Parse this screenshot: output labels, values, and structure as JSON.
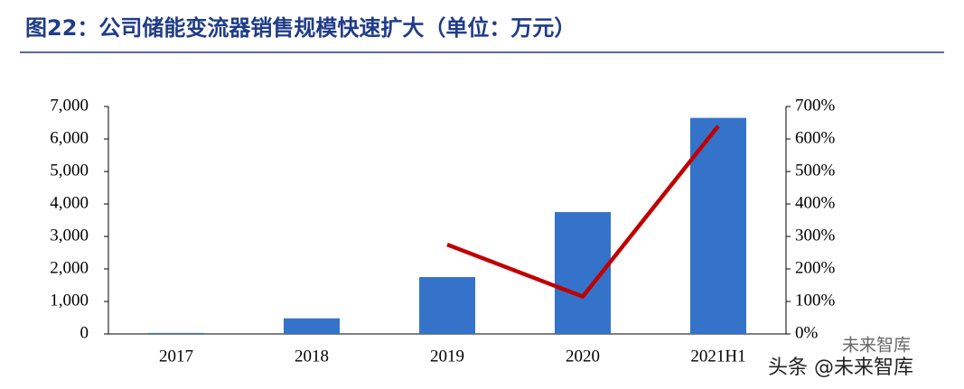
{
  "chart_data": {
    "type": "bar_line",
    "title": "图22：公司储能变流器销售规模快速扩大（单位：万元）",
    "categories": [
      "2017",
      "2018",
      "2019",
      "2020",
      "2021H1"
    ],
    "series": [
      {
        "color": "#3473c9",
        "values": [
          30,
          480,
          1750,
          3750,
          6650
        ]
      },
      {
        "color": "#c00000",
        "axis": "y2",
        "values": [
          null,
          null,
          275,
          115,
          640
        ]
      }
    ],
    "ylim": [
      0,
      7000
    ],
    "yticks": [
      0,
      {
        "value": 1000,
        "label": "1,000"
      },
      {
        "value": 2000,
        "label": "2,000"
      },
      {
        "value": 3000,
        "label": "3,000"
      },
      {
        "value": 4000,
        "label": "4,000"
      },
      {
        "value": 5000,
        "label": "5,000"
      },
      {
        "value": 6000,
        "label": "6,000"
      },
      {
        "value": 7000,
        "label": "7,000"
      }
    ],
    "y2lim": [
      0,
      700
    ],
    "y2ticks": [
      {
        "value": 0,
        "label": "0%"
      },
      {
        "value": 100,
        "label": "100%"
      },
      {
        "value": 200,
        "label": "200%"
      },
      {
        "value": 300,
        "label": "300%"
      },
      {
        "value": 400,
        "label": "400%"
      },
      {
        "value": 500,
        "label": "500%"
      },
      {
        "value": 600,
        "label": "600%"
      },
      {
        "value": 700,
        "label": "700%"
      }
    ],
    "watermark": "头条 @未来智库",
    "watermark_badge": "未来智库"
  }
}
